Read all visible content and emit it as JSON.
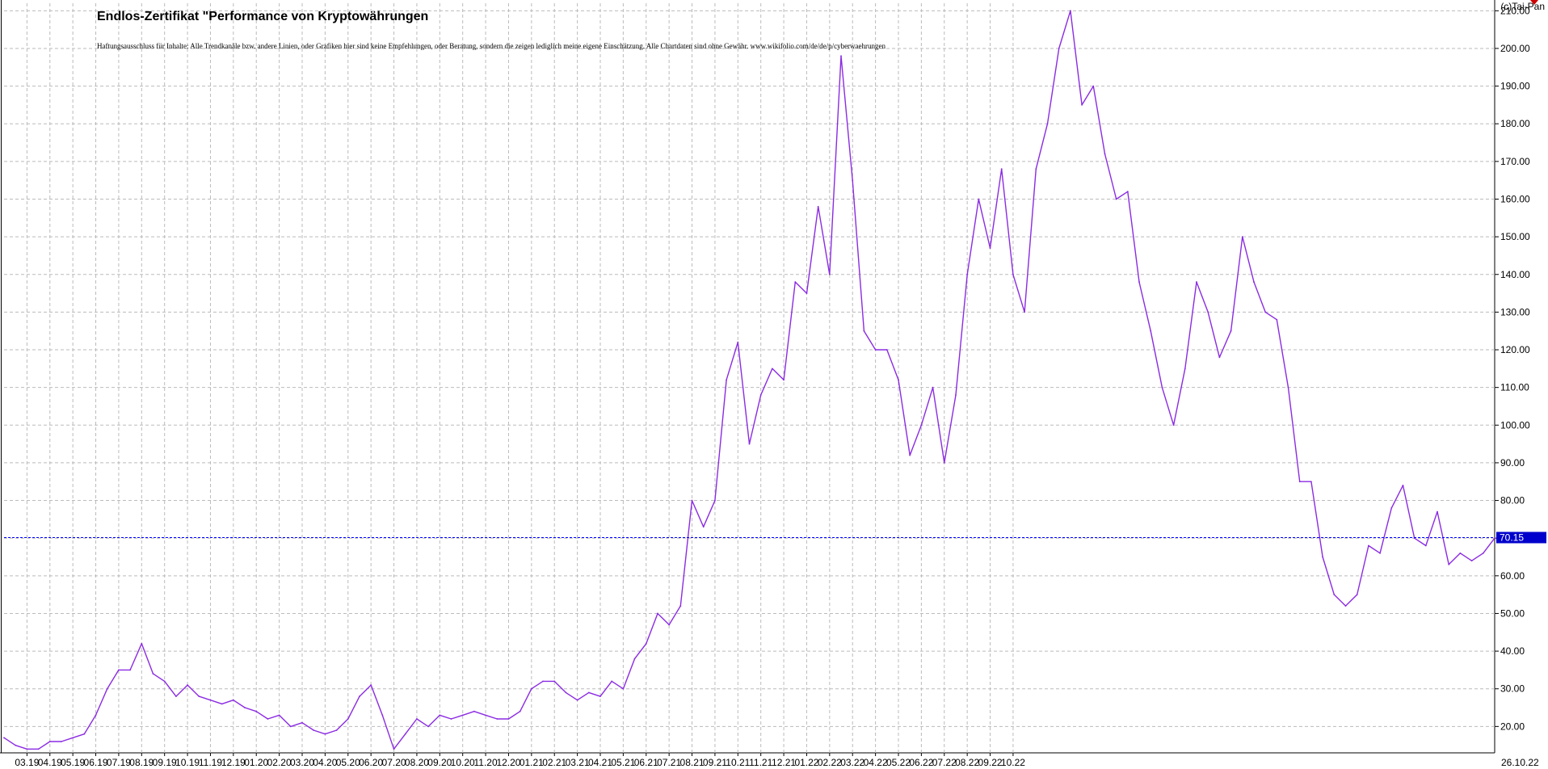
{
  "header": {
    "title": "Endlos-Zertifikat \"Performance von Kryptowährungen",
    "disclaimer": "Haftungsausschluss für Inhalte: Alle Trendkanäle bzw. andere Linien, oder Grafiken hier sind keine Empfehlungen, oder Beratung, sondern die zeigen lediglich meine eigene Einschätzung. Alle Chartdaten sind ohne Gewähr.  www.wikifolio.com/de/de/p/cyberwaehrungen",
    "copyright": "(c)Tai-Pan"
  },
  "colors": {
    "line": "#8B2BE2",
    "current_line": "#0000FF",
    "current_label_bg": "#0000CC",
    "grid": "#BBBBBB",
    "background": "#FFFFFF"
  },
  "chart_data": {
    "type": "line",
    "title": "Endlos-Zertifikat \"Performance von Kryptowährungen",
    "ylim": [
      13,
      212
    ],
    "grid": true,
    "y_ticks": [
      "20.00",
      "30.00",
      "40.00",
      "50.00",
      "60.00",
      "70.00",
      "80.00",
      "90.00",
      "100.00",
      "110.00",
      "120.00",
      "130.00",
      "140.00",
      "150.00",
      "160.00",
      "170.00",
      "180.00",
      "190.00",
      "200.00",
      "210.00"
    ],
    "y_tick_values": [
      20,
      30,
      40,
      50,
      60,
      70,
      80,
      90,
      100,
      110,
      120,
      130,
      140,
      150,
      160,
      170,
      180,
      190,
      200,
      210
    ],
    "x_ticks": [
      "03.19",
      "04.19",
      "05.19",
      "06.19",
      "07.19",
      "08.19",
      "09.19",
      "10.19",
      "11.19",
      "12.19",
      "01.20",
      "02.20",
      "03.20",
      "04.20",
      "05.20",
      "06.20",
      "07.20",
      "08.20",
      "09.20",
      "10.20",
      "11.20",
      "12.20",
      "01.21",
      "02.21",
      "03.21",
      "04.21",
      "05.21",
      "06.21",
      "07.21",
      "08.21",
      "09.21",
      "10.21",
      "11.21",
      "12.21",
      "01.22",
      "02.22",
      "03.22",
      "04.22",
      "05.22",
      "06.22",
      "07.22",
      "08.22",
      "09.22",
      "10.22"
    ],
    "x_tick_index": [
      2,
      4,
      6,
      8,
      10,
      12,
      14,
      16,
      18,
      20,
      22,
      24,
      26,
      28,
      30,
      32,
      34,
      36,
      38,
      40,
      42,
      44,
      46,
      48,
      50,
      52,
      54,
      56,
      58,
      60,
      62,
      64,
      66,
      68,
      70,
      72,
      74,
      76,
      78,
      80,
      82,
      84,
      86,
      88
    ],
    "x_end_label": "26.10.22",
    "current_value": 70.15,
    "current_label": "70.15",
    "series": [
      {
        "values": [
          17,
          15,
          14,
          14,
          16,
          16,
          17,
          18,
          23,
          30,
          35,
          35,
          42,
          34,
          32,
          28,
          31,
          28,
          27,
          26,
          27,
          25,
          24,
          22,
          23,
          20,
          21,
          19,
          18,
          19,
          22,
          28,
          31,
          23,
          14,
          18,
          22,
          20,
          23,
          22,
          23,
          24,
          23,
          22,
          22,
          24,
          30,
          32,
          32,
          29,
          27,
          29,
          28,
          32,
          30,
          38,
          42,
          50,
          47,
          52,
          80,
          73,
          80,
          112,
          122,
          95,
          108,
          115,
          112,
          138,
          135,
          158,
          140,
          198,
          165,
          125,
          120,
          120,
          112,
          92,
          100,
          110,
          90,
          108,
          140,
          160,
          147,
          168,
          140,
          130,
          168,
          180,
          200,
          210,
          185,
          190,
          172,
          160,
          162,
          138,
          125,
          110,
          100,
          115,
          138,
          130,
          118,
          125,
          150,
          138,
          130,
          128,
          110,
          85,
          85,
          65,
          55,
          52,
          55,
          68,
          66,
          78,
          84,
          70,
          68,
          77,
          63,
          66,
          64,
          66,
          70
        ]
      }
    ]
  }
}
